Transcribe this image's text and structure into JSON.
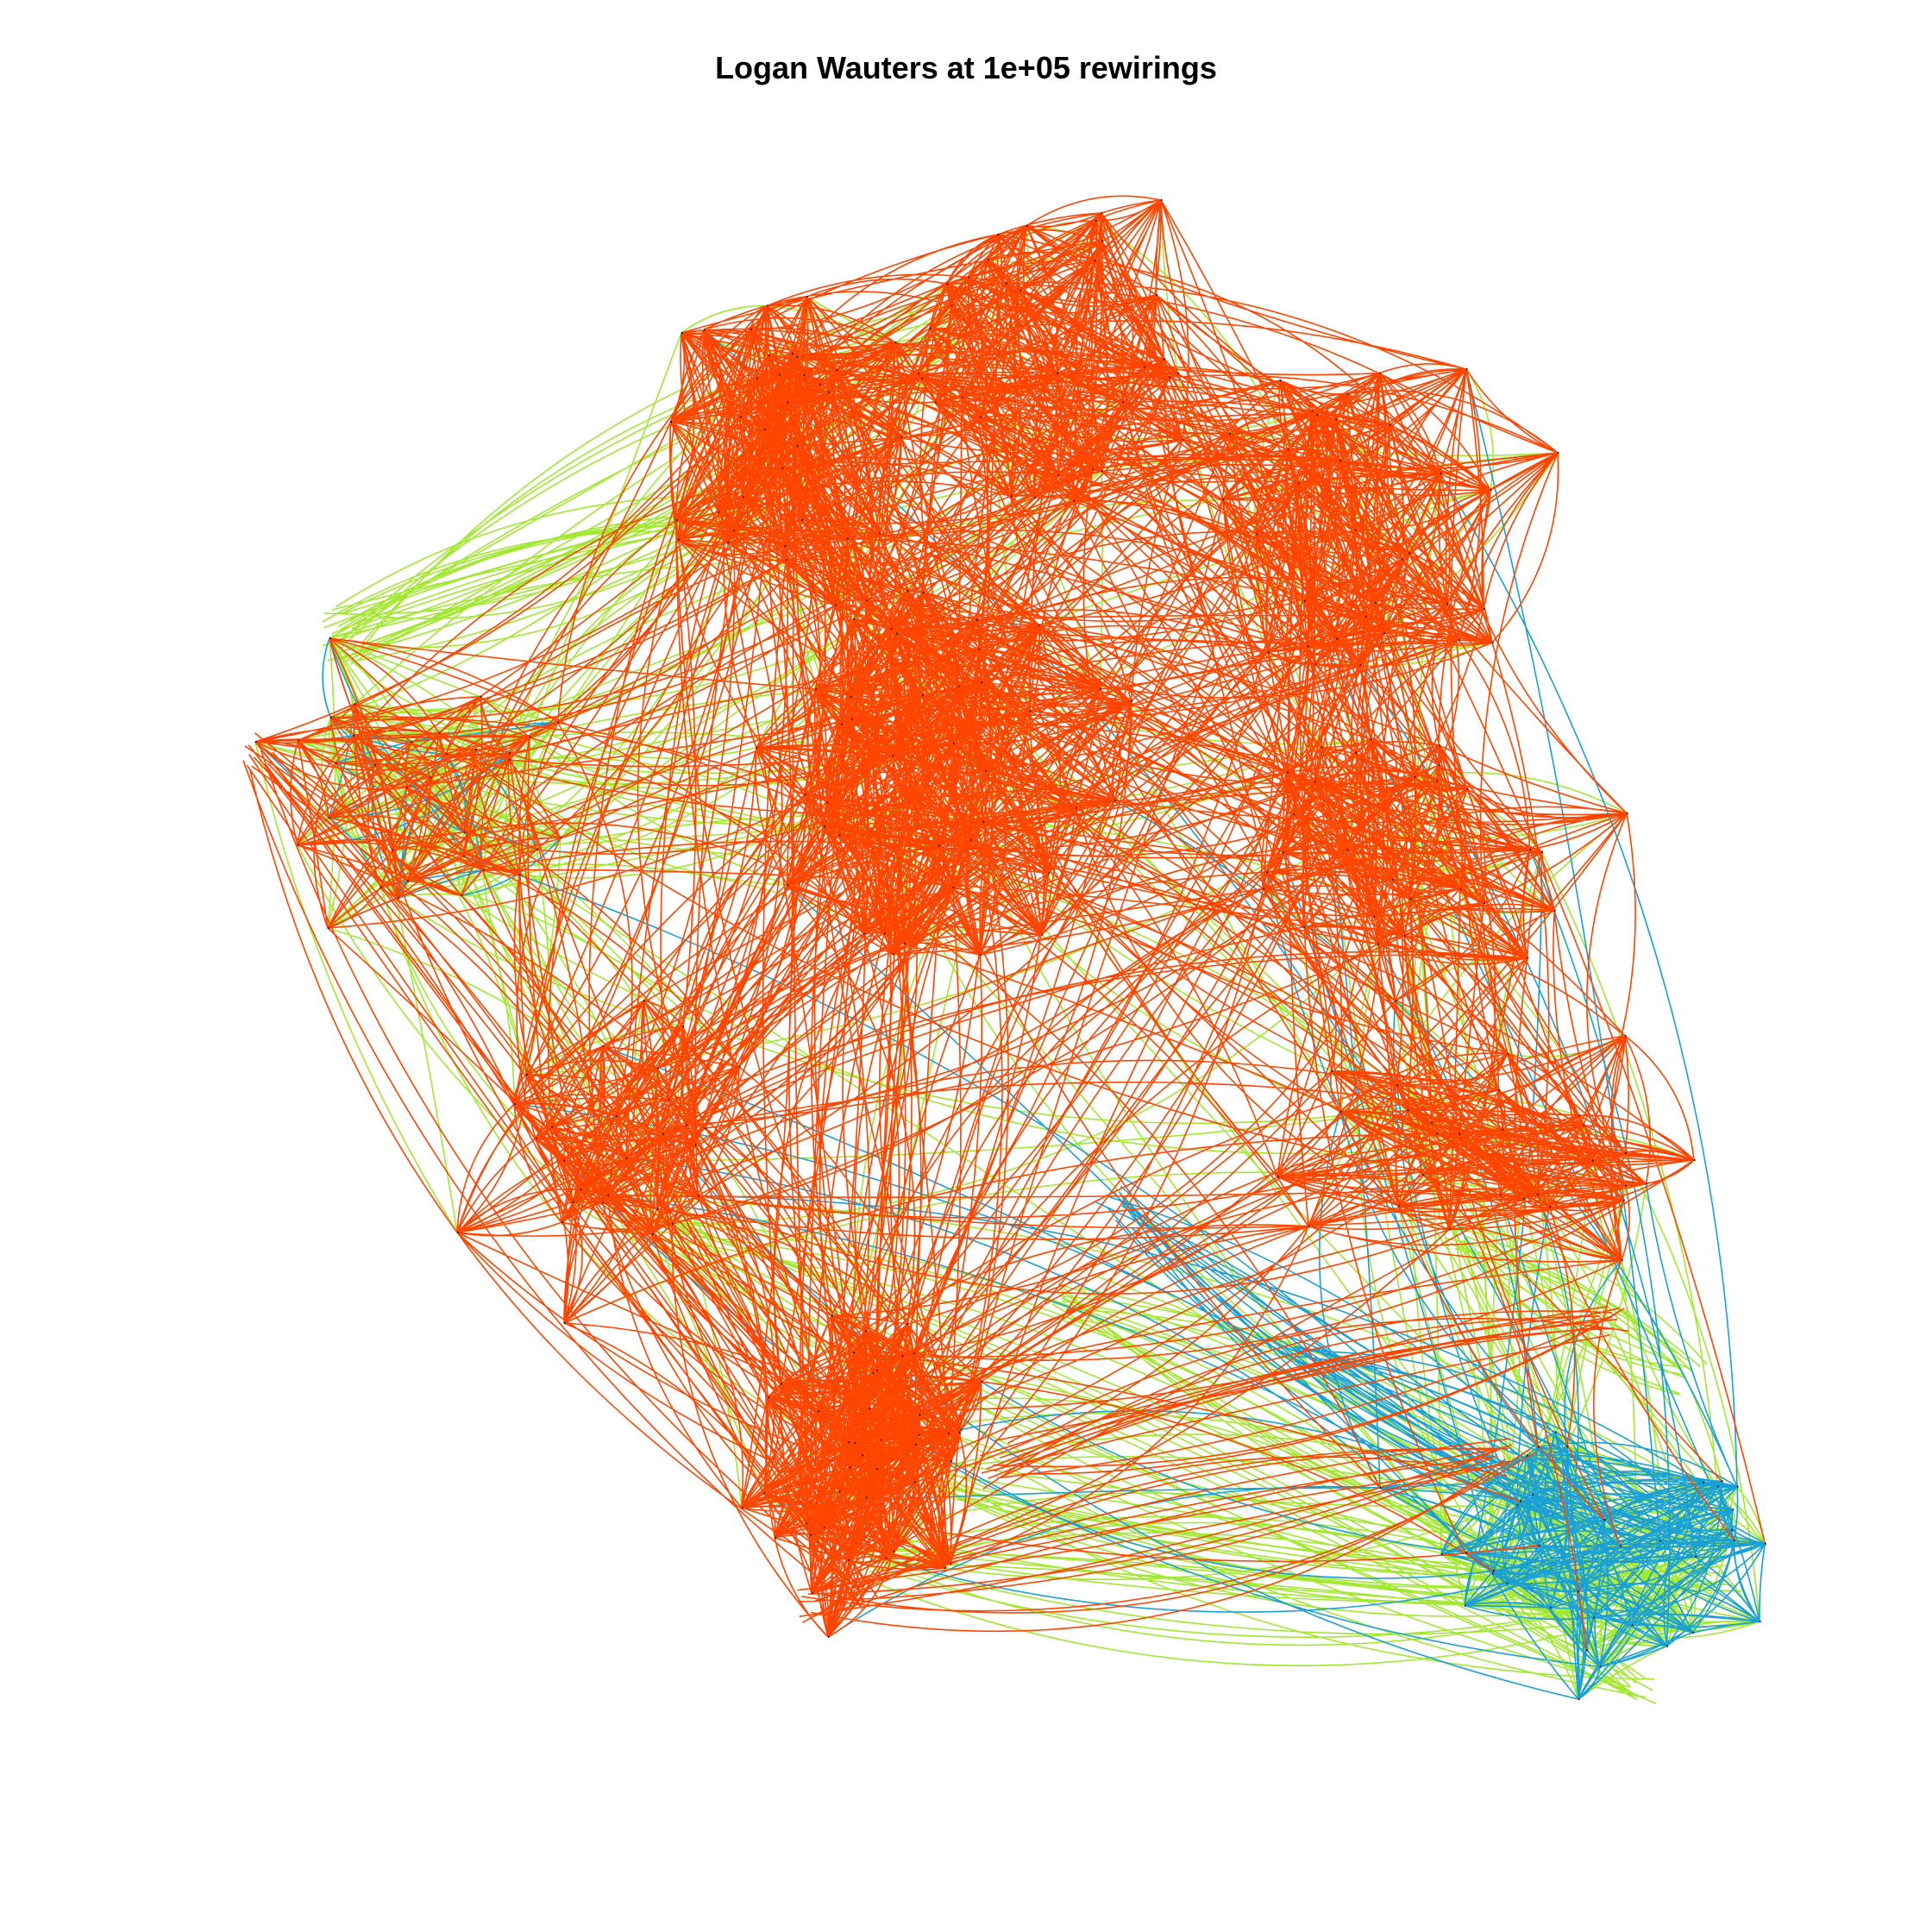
{
  "figure": {
    "title": "Logan Wauters at 1e+05 rewirings"
  },
  "graph": {
    "type": "network",
    "edge_style": "curved",
    "node_color": "#000000",
    "colors": {
      "orange": "#ff4500",
      "green": "#a2e831",
      "blue": "#1aa0d4"
    },
    "edge_color_groups": [
      "orange",
      "green",
      "blue"
    ]
  }
}
